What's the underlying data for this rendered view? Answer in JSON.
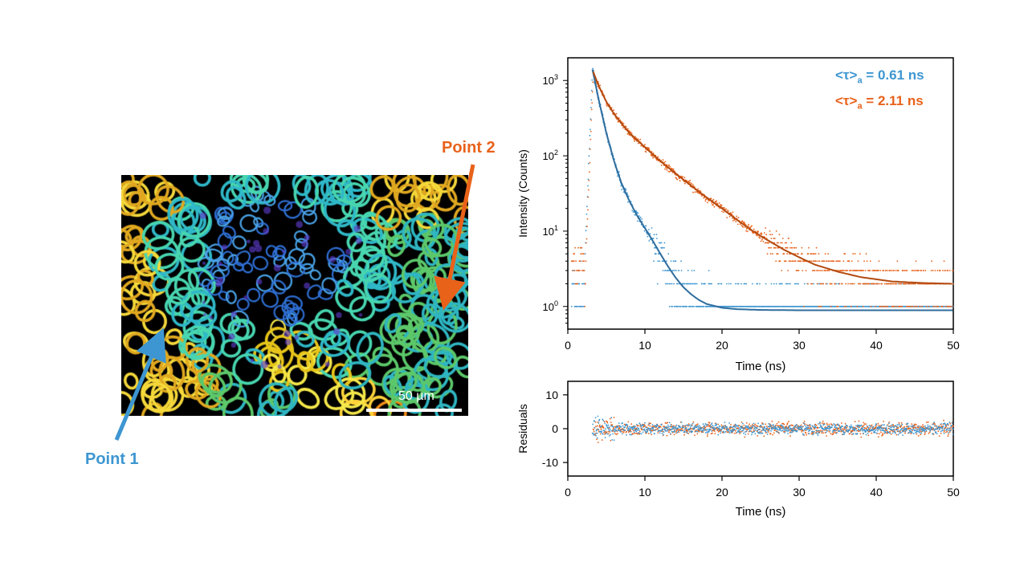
{
  "image_panel": {
    "scale_bar_label": "50 µm",
    "point1_label": "Point 1",
    "point2_label": "Point 2",
    "point1_color": "#3d96d1",
    "point2_color": "#e8621a"
  },
  "annotations": {
    "tau1": {
      "prefix": "<τ>",
      "subscript": "a",
      "suffix": " = 0.61 ns",
      "color": "#3d96d1"
    },
    "tau2": {
      "prefix": "<τ>",
      "subscript": "a",
      "suffix": " = 2.11 ns",
      "color": "#e8621a"
    }
  },
  "chart_data": [
    {
      "type": "scatter",
      "title": "",
      "xlabel": "Time (ns)",
      "ylabel": "Intensity (Counts)",
      "xlim": [
        0,
        50
      ],
      "ylim": [
        0.5,
        2000
      ],
      "yscale": "log",
      "x_ticks": [
        0,
        10,
        20,
        30,
        40,
        50
      ],
      "y_ticks": [
        1,
        10,
        100,
        1000
      ],
      "y_tick_labels": [
        {
          "base": "10",
          "exp": "0"
        },
        {
          "base": "10",
          "exp": "1"
        },
        {
          "base": "10",
          "exp": "2"
        },
        {
          "base": "10",
          "exp": "3"
        }
      ],
      "grid": false,
      "series": [
        {
          "color": "#3d96d1",
          "fit_color": "#2e6d9e",
          "peak_time": 3.2,
          "peak": 1400,
          "fit_points": [
            [
              3.2,
              1400
            ],
            [
              4,
              560
            ],
            [
              5,
              200
            ],
            [
              6,
              85
            ],
            [
              7,
              42
            ],
            [
              8,
              25
            ],
            [
              9,
              16
            ],
            [
              10,
              11
            ],
            [
              11,
              7.5
            ],
            [
              12,
              5
            ],
            [
              13,
              3.4
            ],
            [
              14,
              2.4
            ],
            [
              15,
              1.8
            ],
            [
              16,
              1.45
            ],
            [
              17,
              1.22
            ],
            [
              18,
              1.08
            ],
            [
              20,
              0.96
            ],
            [
              22,
              0.92
            ],
            [
              25,
              0.9
            ],
            [
              30,
              0.89
            ],
            [
              40,
              0.89
            ],
            [
              50,
              0.89
            ]
          ]
        },
        {
          "color": "#e8621a",
          "fit_color": "#b34a10",
          "peak_time": 3.3,
          "peak": 1300,
          "fit_points": [
            [
              3.3,
              1300
            ],
            [
              4,
              850
            ],
            [
              5,
              520
            ],
            [
              6,
              360
            ],
            [
              7,
              265
            ],
            [
              8,
              200
            ],
            [
              10,
              130
            ],
            [
              12,
              85
            ],
            [
              14,
              58
            ],
            [
              16,
              40
            ],
            [
              18,
              28
            ],
            [
              20,
              20
            ],
            [
              22,
              14
            ],
            [
              24,
              10
            ],
            [
              26,
              7.5
            ],
            [
              28,
              5.7
            ],
            [
              30,
              4.5
            ],
            [
              32,
              3.6
            ],
            [
              35,
              2.9
            ],
            [
              38,
              2.45
            ],
            [
              42,
              2.15
            ],
            [
              46,
              2.05
            ],
            [
              50,
              2.0
            ]
          ]
        }
      ]
    },
    {
      "type": "scatter",
      "title": "",
      "xlabel": "Time (ns)",
      "ylabel": "Residuals",
      "xlim": [
        0,
        50
      ],
      "ylim": [
        -14,
        14
      ],
      "x_ticks": [
        0,
        10,
        20,
        30,
        40,
        50
      ],
      "y_ticks": [
        -10,
        0,
        10
      ],
      "grid": false,
      "series": [
        {
          "color": "#e8621a",
          "range": [
            3.3,
            50
          ],
          "spread": 1.3
        },
        {
          "color": "#3d96d1",
          "range": [
            3.2,
            50
          ],
          "spread": 1.1
        }
      ]
    }
  ]
}
